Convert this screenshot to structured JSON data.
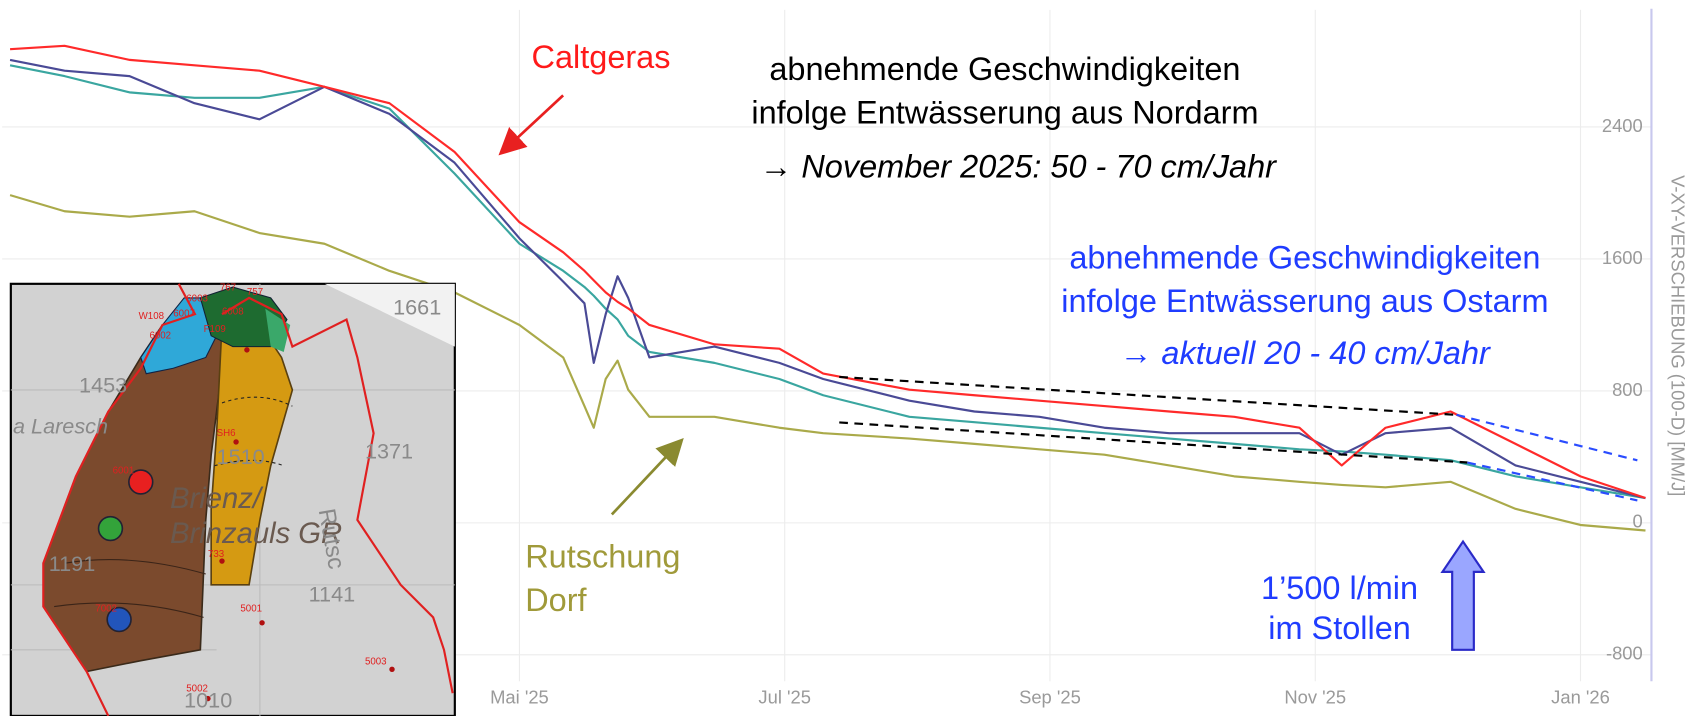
{
  "chart_data": {
    "type": "line",
    "x": [
      1.16,
      1.57,
      2.06,
      2.55,
      3.04,
      3.53,
      4.02,
      4.51,
      5.0,
      5.33,
      5.49,
      5.56,
      5.65,
      5.74,
      5.82,
      5.98,
      6.47,
      6.96,
      7.29,
      7.94,
      8.43,
      8.92,
      9.41,
      9.9,
      10.39,
      10.88,
      11.2,
      11.53,
      12.02,
      12.51,
      13.0,
      13.49
    ],
    "xlim": [
      1.1,
      13.6
    ],
    "xticks": [
      {
        "value": 5,
        "label": "Mai '25"
      },
      {
        "value": 7,
        "label": "Jul '25"
      },
      {
        "value": 9,
        "label": "Sep '25"
      },
      {
        "value": 11,
        "label": "Nov '25"
      },
      {
        "value": 13,
        "label": "Jan '26"
      }
    ],
    "ylim": [
      -960,
      3110
    ],
    "yticks": [
      -800,
      0,
      800,
      1600,
      2400
    ],
    "y_axis_label": "V-XY-VERSCHIEBUNG (100-D) [MM/J]",
    "grid": true,
    "series": [
      {
        "color": "#ff2a2a",
        "values": [
          2872,
          2892,
          2807,
          2774,
          2741,
          2643,
          2544,
          2249,
          1823,
          1640,
          1528,
          1470,
          1397,
          1340,
          1300,
          1200,
          1082,
          1056,
          905,
          807,
          774,
          741,
          708,
          675,
          643,
          577,
          348,
          577,
          675,
          479,
          282,
          151
        ]
      },
      {
        "color": "#4a4a96",
        "values": [
          2807,
          2741,
          2708,
          2544,
          2446,
          2643,
          2479,
          2184,
          1725,
          1462,
          1331,
          970,
          1265,
          1495,
          1364,
          1003,
          1069,
          970,
          872,
          741,
          675,
          643,
          577,
          544,
          544,
          544,
          413,
          544,
          577,
          348,
          249,
          151
        ]
      },
      {
        "color": "#3aa6a0",
        "values": [
          2774,
          2708,
          2610,
          2577,
          2577,
          2643,
          2511,
          2118,
          1692,
          1528,
          1430,
          1377,
          1298,
          1233,
          1134,
          1036,
          970,
          872,
          774,
          643,
          610,
          577,
          544,
          511,
          479,
          446,
          433,
          413,
          380,
          282,
          216,
          151
        ]
      },
      {
        "color": "#aaaa4a",
        "values": [
          1987,
          1889,
          1856,
          1889,
          1757,
          1692,
          1528,
          1397,
          1200,
          1003,
          708,
          577,
          872,
          984,
          807,
          643,
          643,
          577,
          544,
          511,
          479,
          446,
          413,
          348,
          282,
          249,
          230,
          216,
          249,
          85,
          -13,
          -46
        ]
      }
    ],
    "annotations": {
      "caltgeras": "Caltgeras",
      "nordarm": [
        "abnehmende Geschwindigkeiten",
        "infolge Entwässerung aus Nordarm",
        "→ November 2025: 50 - 70 cm/Jahr"
      ],
      "ostarm": [
        "abnehmende Geschwindigkeiten",
        "infolge Entwässerung aus Ostarm",
        "→ aktuell 20 - 40 cm/Jahr"
      ],
      "dorf": [
        "Rutschung",
        "Dorf"
      ],
      "stollen": [
        "1’500 l/min",
        "im Stollen"
      ]
    }
  },
  "inset_map": {
    "labels": [
      "1661",
      "1453",
      "a Laresch",
      "1510",
      "1371",
      "Brienz/",
      "Brinzauls GR",
      "1191",
      "1141",
      "1010",
      "Rutsc",
      "W108",
      "6003",
      "6007",
      "6008",
      "6002",
      "F109",
      "767",
      "757",
      "SH6",
      "6001",
      "7002",
      "733",
      "5001",
      "5003",
      "5002"
    ]
  }
}
